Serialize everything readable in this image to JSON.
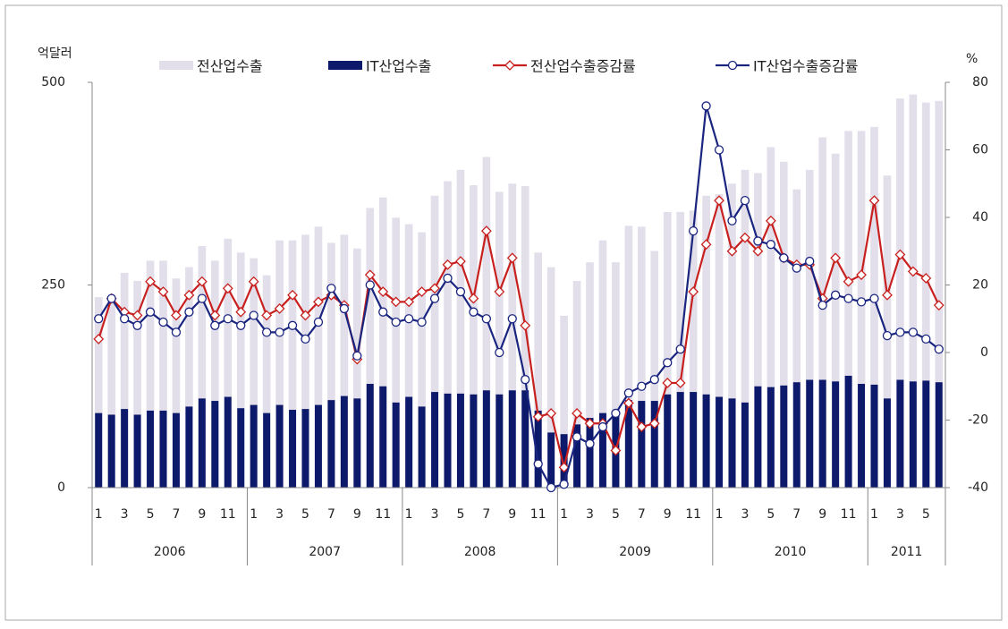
{
  "chart_data": {
    "type": "bar-line",
    "y_label": "억달러",
    "y2_label": "%",
    "categories": [
      "1",
      null,
      "3",
      null,
      "5",
      null,
      "7",
      null,
      "9",
      null,
      "11",
      null,
      "1",
      null,
      "3",
      null,
      "5",
      null,
      "7",
      null,
      "9",
      null,
      "11",
      null,
      "1",
      null,
      "3",
      null,
      "5",
      null,
      "7",
      null,
      "9",
      null,
      "11",
      null,
      "1",
      null,
      "3",
      null,
      "5",
      null,
      "7",
      null,
      "9",
      null,
      "11",
      null,
      "1",
      null,
      "3",
      null,
      "5",
      null,
      "7",
      null,
      "9",
      null,
      "11",
      null,
      "1",
      null,
      "3",
      null,
      "5",
      null
    ],
    "groups": [
      "2006",
      "2007",
      "2008",
      "2009",
      "2010",
      "2011"
    ],
    "ylim": [
      0,
      500
    ],
    "yticks": [
      0,
      250,
      500
    ],
    "y2lim": [
      -40,
      80
    ],
    "y2ticks": [
      -40,
      -20,
      0,
      20,
      40,
      60,
      80
    ],
    "series": [
      {
        "name": "전산업수출",
        "type": "bar",
        "color": "#e2dfea",
        "values": [
          235,
          230,
          265,
          255,
          280,
          280,
          258,
          272,
          298,
          280,
          307,
          290,
          283,
          262,
          305,
          305,
          312,
          322,
          302,
          312,
          295,
          345,
          358,
          333,
          325,
          315,
          360,
          378,
          392,
          373,
          408,
          365,
          375,
          372,
          290,
          272,
          212,
          255,
          278,
          305,
          278,
          323,
          322,
          292,
          340,
          340,
          342,
          360,
          362,
          375,
          392,
          388,
          420,
          402,
          368,
          392,
          432,
          412,
          440,
          440,
          445,
          385,
          480,
          485,
          475,
          477
        ]
      },
      {
        "name": "IT산업수출",
        "type": "bar",
        "color": "#0d1a6b",
        "values": [
          92,
          90,
          97,
          90,
          95,
          95,
          92,
          100,
          110,
          107,
          112,
          98,
          102,
          92,
          102,
          96,
          97,
          102,
          108,
          113,
          110,
          128,
          125,
          105,
          112,
          100,
          118,
          116,
          116,
          115,
          120,
          115,
          120,
          120,
          95,
          68,
          66,
          78,
          86,
          92,
          95,
          108,
          107,
          107,
          115,
          118,
          118,
          115,
          112,
          110,
          105,
          125,
          124,
          126,
          130,
          133,
          133,
          131,
          138,
          128,
          127,
          110,
          133,
          131,
          132,
          130
        ]
      },
      {
        "name": "전산업수출증감률",
        "type": "line",
        "marker": "diamond",
        "axis": "y2",
        "color": "#c8201e",
        "values": [
          4,
          16,
          12,
          11,
          21,
          18,
          11,
          17,
          21,
          11,
          19,
          12,
          21,
          11,
          13,
          17,
          11,
          15,
          17,
          14,
          -2,
          23,
          18,
          15,
          15,
          18,
          19,
          26,
          27,
          16,
          36,
          18,
          28,
          8,
          -19,
          -18,
          -34,
          -18,
          -21,
          -21,
          -29,
          -15,
          -22,
          -21,
          -9,
          -9,
          18,
          32,
          45,
          30,
          34,
          30,
          39,
          28,
          26,
          26,
          16,
          28,
          21,
          23,
          45,
          17,
          29,
          24,
          22,
          14
        ]
      },
      {
        "name": "IT산업수출증감률",
        "type": "line",
        "marker": "circle",
        "axis": "y2",
        "color": "#1a2580",
        "values": [
          10,
          16,
          10,
          8,
          12,
          9,
          6,
          12,
          16,
          8,
          10,
          8,
          11,
          6,
          6,
          8,
          4,
          9,
          19,
          13,
          -1,
          20,
          12,
          9,
          10,
          9,
          16,
          22,
          18,
          12,
          10,
          0,
          10,
          -8,
          -33,
          -40,
          -39,
          -25,
          -27,
          -22,
          -18,
          -12,
          -10,
          -8,
          -3,
          1,
          36,
          73,
          60,
          39,
          45,
          33,
          32,
          28,
          25,
          27,
          14,
          17,
          16,
          15,
          16,
          5,
          6,
          6,
          4,
          1
        ]
      }
    ]
  }
}
